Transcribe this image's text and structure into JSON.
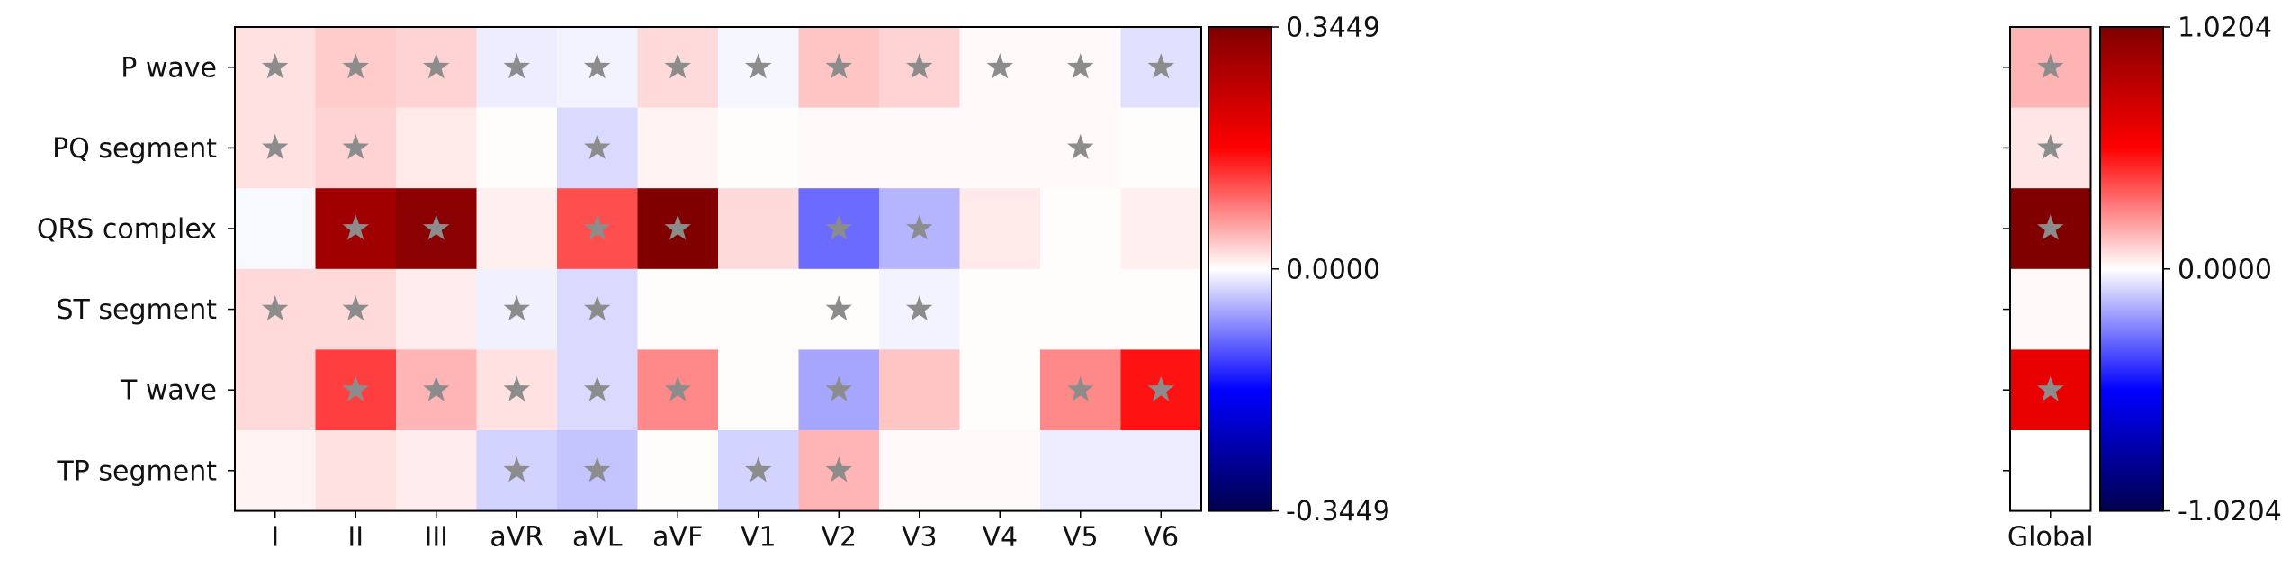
{
  "chart_data": [
    {
      "type": "heatmap",
      "title": "",
      "xlabel": "",
      "ylabel": "",
      "x_categories": [
        "I",
        "II",
        "III",
        "aVR",
        "aVL",
        "aVF",
        "V1",
        "V2",
        "V3",
        "V4",
        "V5",
        "V6"
      ],
      "y_categories": [
        "P wave",
        "PQ segment",
        "QRS complex",
        "ST segment",
        "T wave",
        "TP segment"
      ],
      "values": [
        [
          0.02,
          0.035,
          0.03,
          -0.012,
          -0.008,
          0.025,
          -0.006,
          0.04,
          0.03,
          0.004,
          0.004,
          -0.02
        ],
        [
          0.02,
          0.03,
          0.015,
          0.002,
          -0.025,
          0.008,
          0.002,
          0.004,
          0.004,
          0.004,
          0.004,
          0.002
        ],
        [
          -0.005,
          0.3,
          0.33,
          0.01,
          0.12,
          0.345,
          0.025,
          -0.1,
          -0.05,
          0.015,
          0.002,
          0.01
        ],
        [
          0.025,
          0.025,
          0.012,
          -0.01,
          -0.025,
          0.002,
          0.002,
          0.002,
          -0.008,
          0.002,
          0.002,
          0.002
        ],
        [
          0.025,
          0.13,
          0.05,
          0.02,
          -0.025,
          0.08,
          0.002,
          -0.06,
          0.04,
          0.002,
          0.08,
          0.16
        ],
        [
          0.008,
          0.02,
          0.012,
          -0.03,
          -0.04,
          0.002,
          -0.03,
          0.05,
          0.004,
          0.004,
          -0.012,
          -0.012
        ]
      ],
      "significant": [
        [
          true,
          true,
          true,
          true,
          true,
          true,
          true,
          true,
          true,
          true,
          true,
          true
        ],
        [
          true,
          true,
          false,
          false,
          true,
          false,
          false,
          false,
          false,
          false,
          true,
          false
        ],
        [
          false,
          true,
          true,
          false,
          true,
          true,
          false,
          true,
          true,
          false,
          false,
          false
        ],
        [
          true,
          true,
          false,
          true,
          true,
          false,
          false,
          true,
          true,
          false,
          false,
          false
        ],
        [
          false,
          true,
          true,
          true,
          true,
          true,
          false,
          true,
          false,
          false,
          true,
          true
        ],
        [
          false,
          false,
          false,
          true,
          true,
          false,
          true,
          true,
          false,
          false,
          false,
          false
        ]
      ],
      "marker": "star",
      "marker_color": "#8c8c8c",
      "colormap": "seismic",
      "color_range": [
        -0.3449,
        0.3449
      ],
      "colorbar_ticks": [
        "0.3449",
        "0.0000",
        "-0.3449"
      ]
    },
    {
      "type": "heatmap",
      "title": "",
      "xlabel": "",
      "ylabel": "",
      "x_categories": [
        "Global"
      ],
      "y_categories": [
        "P wave",
        "PQ segment",
        "QRS complex",
        "ST segment",
        "T wave",
        "TP segment"
      ],
      "values": [
        [
          0.15
        ],
        [
          0.05
        ],
        [
          1.0204
        ],
        [
          0.01
        ],
        [
          0.6
        ],
        [
          0.0
        ]
      ],
      "significant": [
        [
          true
        ],
        [
          true
        ],
        [
          true
        ],
        [
          false
        ],
        [
          true
        ],
        [
          false
        ]
      ],
      "marker": "star",
      "marker_color": "#8c8c8c",
      "colormap": "seismic",
      "color_range": [
        -1.0204,
        1.0204
      ],
      "colorbar_ticks": [
        "1.0204",
        "0.0000",
        "-1.0204"
      ]
    }
  ]
}
